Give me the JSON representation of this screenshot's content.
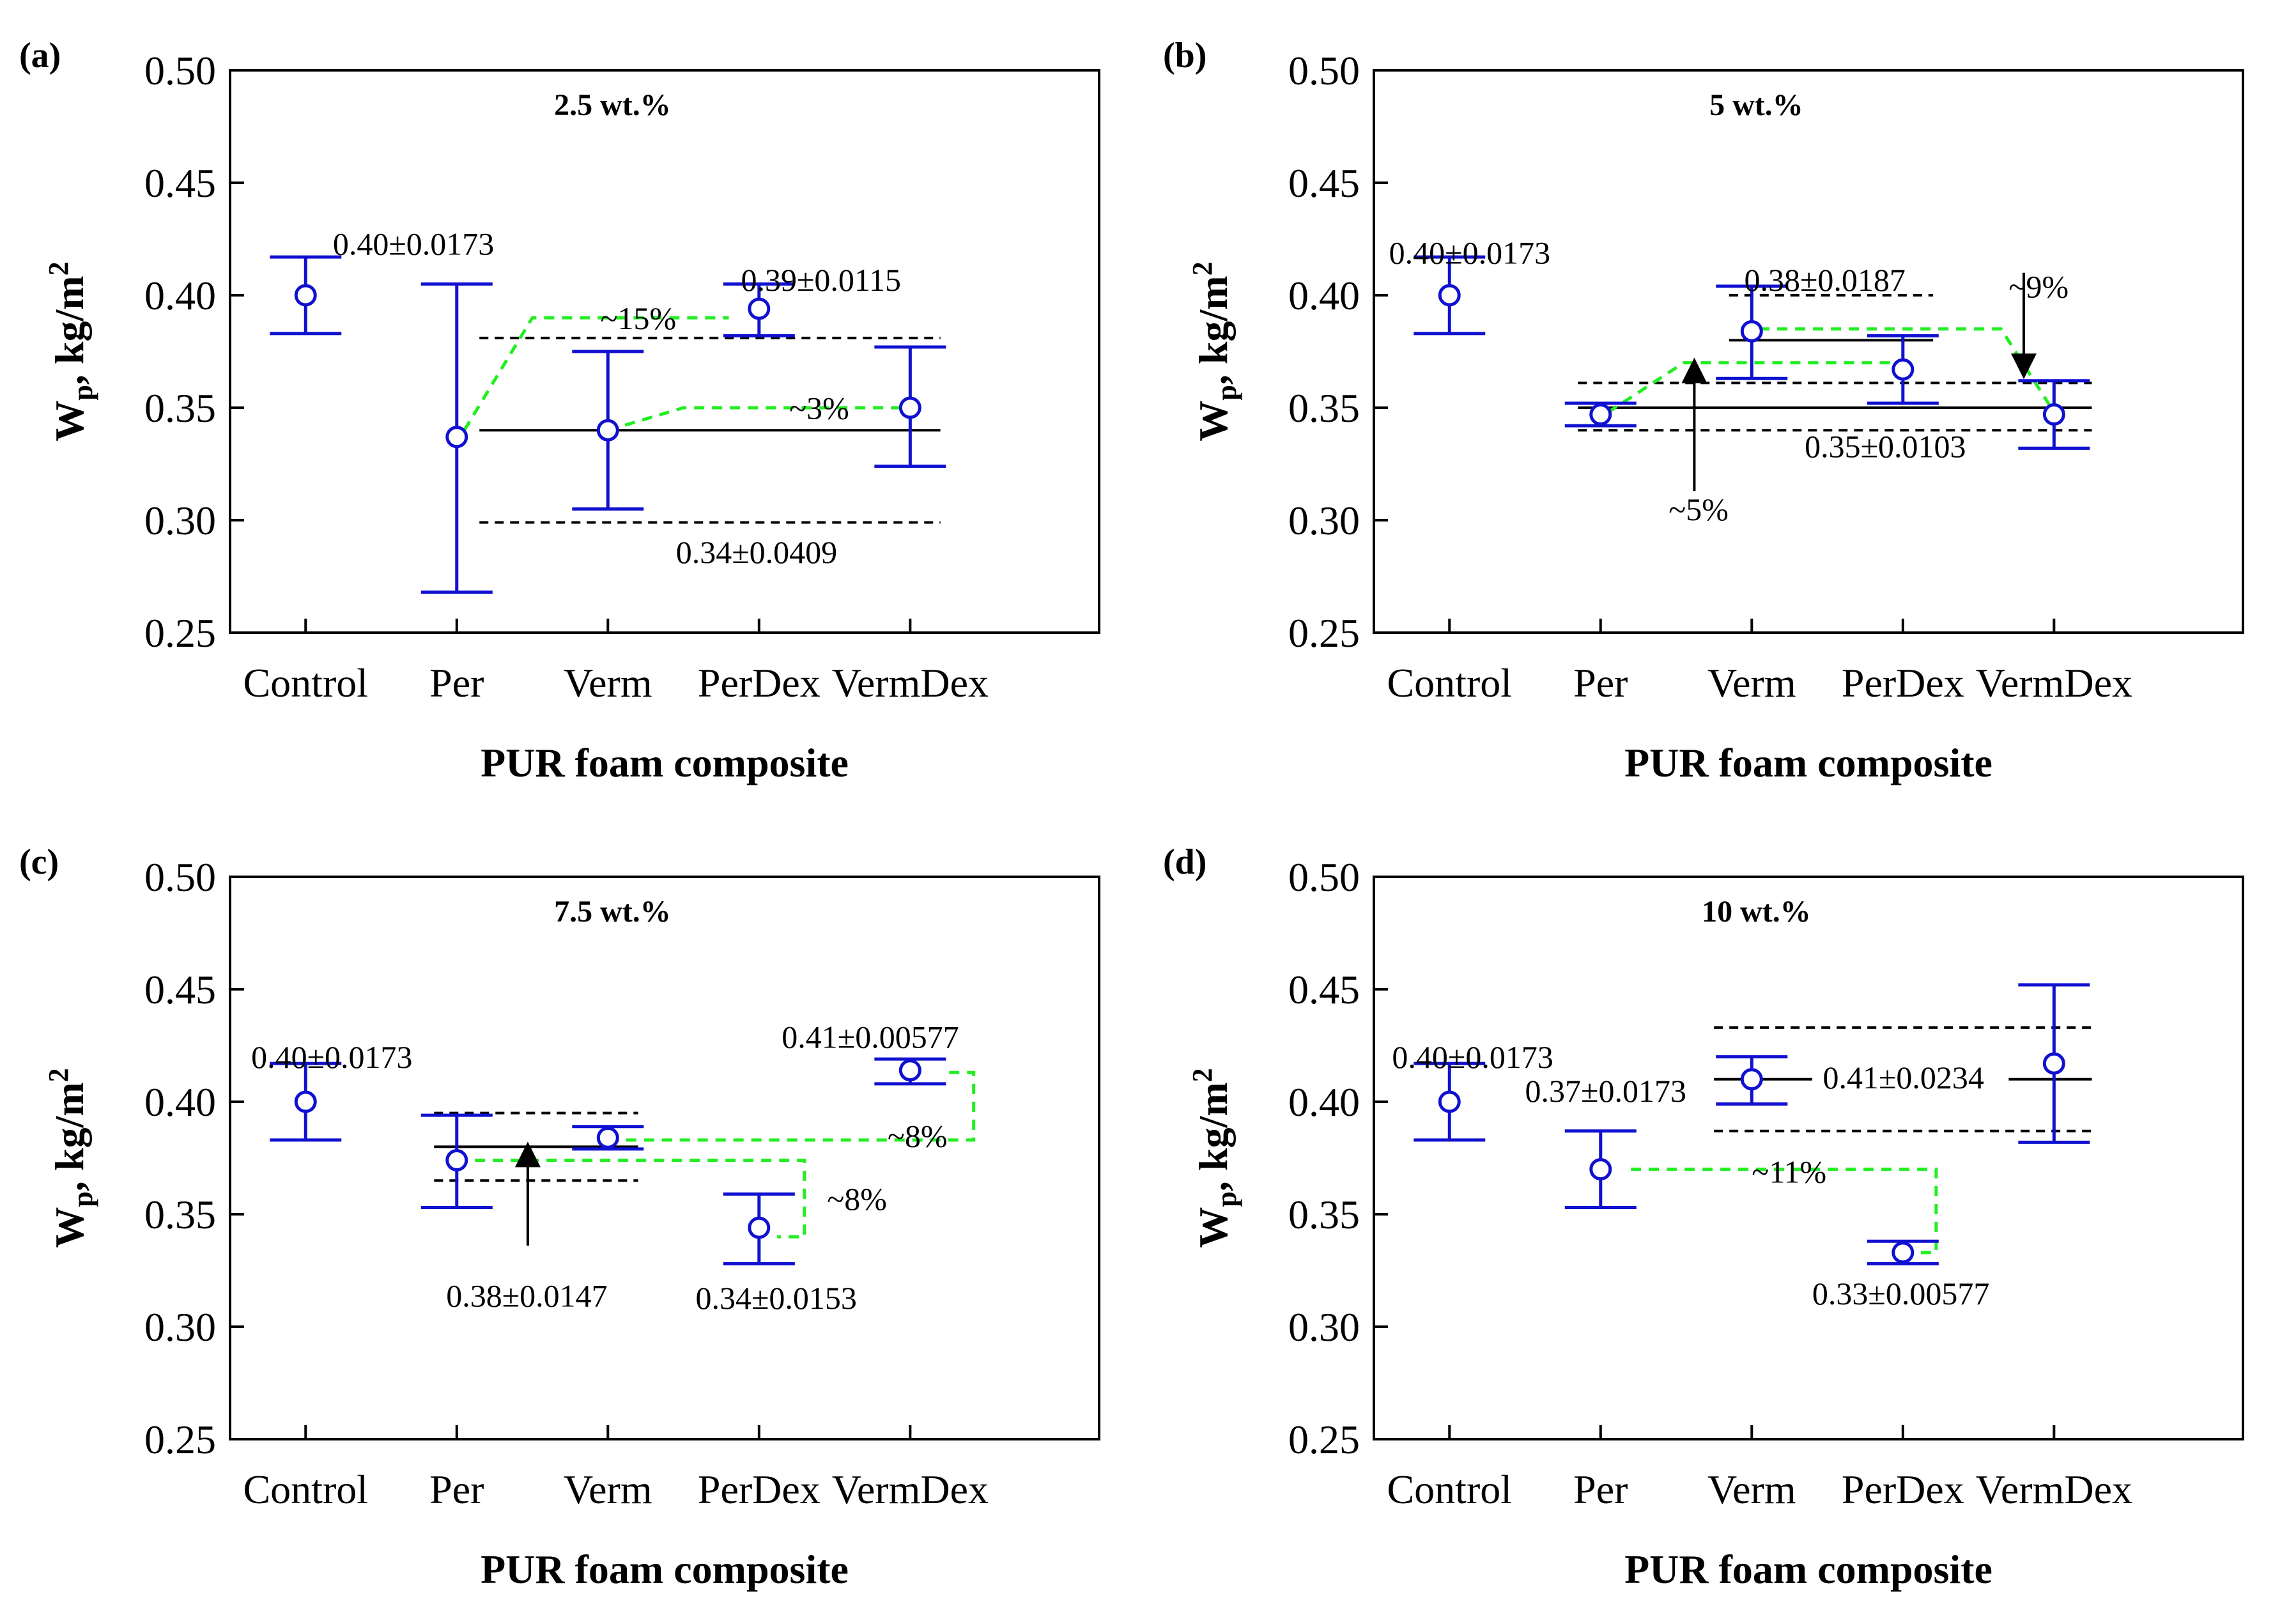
{
  "chart_data": [
    {
      "type": "scatter",
      "panel": "(a)",
      "title": "2.5 wt.%",
      "xlabel": "PUR foam composite",
      "ylabel": {
        "main": "W",
        "sub": "p",
        "unit": ", kg/m",
        "sup": "2"
      },
      "categories": [
        "Control",
        "Per",
        "Verm",
        "PerDex",
        "VermDex"
      ],
      "values": [
        0.4,
        0.337,
        0.34,
        0.394,
        0.35
      ],
      "err_low": [
        0.383,
        0.268,
        0.305,
        0.382,
        0.324
      ],
      "err_high": [
        0.417,
        0.405,
        0.375,
        0.405,
        0.377
      ],
      "ylim": [
        0.25,
        0.5
      ],
      "yticks": [
        0.25,
        0.3,
        0.35,
        0.4,
        0.45,
        0.5
      ],
      "ytick_labels": [
        "0.25",
        "0.30",
        "0.35",
        "0.40",
        "0.45",
        "0.50"
      ],
      "mean_line": {
        "y": 0.34,
        "x_from": 1.15,
        "x_to": 4.2
      },
      "band_lines": [
        {
          "y": 0.381,
          "x_from": 1.15,
          "x_to": 4.2
        },
        {
          "y": 0.299,
          "x_from": 1.15,
          "x_to": 4.2
        }
      ],
      "green_paths": [
        [
          [
            1.05,
            0.34
          ],
          [
            1.5,
            0.39
          ],
          [
            2.8,
            0.39
          ]
        ],
        [
          [
            2.0,
            0.34
          ],
          [
            2.5,
            0.35
          ],
          [
            4.0,
            0.35
          ]
        ]
      ],
      "arrows": [],
      "annotations": [
        {
          "text": "0.40±0.0173",
          "x": 0.18,
          "y": 0.418
        },
        {
          "text": "0.39±0.0115",
          "x": 2.88,
          "y": 0.402
        },
        {
          "text": "~15%",
          "x": 1.95,
          "y": 0.385
        },
        {
          "text": "~3%",
          "x": 3.2,
          "y": 0.345
        },
        {
          "text": "0.34±0.0409",
          "x": 2.45,
          "y": 0.281
        }
      ]
    },
    {
      "type": "scatter",
      "panel": "(b)",
      "title": "5 wt.%",
      "xlabel": "PUR foam composite",
      "ylabel": {
        "main": "W",
        "sub": "p",
        "unit": ", kg/m",
        "sup": "2"
      },
      "categories": [
        "Control",
        "Per",
        "Verm",
        "PerDex",
        "VermDex"
      ],
      "values": [
        0.4,
        0.347,
        0.384,
        0.367,
        0.347
      ],
      "err_low": [
        0.383,
        0.342,
        0.363,
        0.352,
        0.332
      ],
      "err_high": [
        0.417,
        0.352,
        0.404,
        0.382,
        0.362
      ],
      "ylim": [
        0.25,
        0.5
      ],
      "yticks": [
        0.25,
        0.3,
        0.35,
        0.4,
        0.45,
        0.5
      ],
      "ytick_labels": [
        "0.25",
        "0.30",
        "0.35",
        "0.40",
        "0.45",
        "0.50"
      ],
      "mean_line": {
        "y": 0.35,
        "x_from": 0.85,
        "x_to": 4.25
      },
      "band_lines": [
        {
          "y": 0.361,
          "x_from": 0.85,
          "x_to": 4.25
        },
        {
          "y": 0.34,
          "x_from": 0.85,
          "x_to": 4.25
        },
        {
          "y": 0.4,
          "x_from": 1.85,
          "x_to": 3.2
        }
      ],
      "segment_lines": [
        {
          "y": 0.38,
          "x_from": 1.85,
          "x_to": 3.2
        }
      ],
      "green_paths": [
        [
          [
            1.05,
            0.348
          ],
          [
            1.55,
            0.37
          ],
          [
            3.0,
            0.37
          ]
        ],
        [
          [
            2.05,
            0.385
          ],
          [
            3.65,
            0.385
          ],
          [
            4.0,
            0.348
          ]
        ]
      ],
      "arrows": [
        {
          "x": 1.62,
          "y_from": 0.313,
          "y_to": 0.37
        },
        {
          "x": 3.8,
          "y_from": 0.41,
          "y_to": 0.365
        }
      ],
      "annotations": [
        {
          "text": "0.40±0.0173",
          "x": -0.4,
          "y": 0.414
        },
        {
          "text": "0.38±0.0187",
          "x": 1.95,
          "y": 0.402
        },
        {
          "text": "~9%",
          "x": 3.7,
          "y": 0.399
        },
        {
          "text": "0.35±0.0103",
          "x": 2.35,
          "y": 0.328
        },
        {
          "text": "~5%",
          "x": 1.45,
          "y": 0.3
        }
      ]
    },
    {
      "type": "scatter",
      "panel": "(c)",
      "title": "7.5 wt.%",
      "xlabel": "PUR foam composite",
      "ylabel": {
        "main": "W",
        "sub": "p",
        "unit": ", kg/m",
        "sup": "2"
      },
      "categories": [
        "Control",
        "Per",
        "Verm",
        "PerDex",
        "VermDex"
      ],
      "values": [
        0.4,
        0.374,
        0.384,
        0.344,
        0.414
      ],
      "err_low": [
        0.383,
        0.353,
        0.379,
        0.328,
        0.408
      ],
      "err_high": [
        0.417,
        0.394,
        0.389,
        0.359,
        0.419
      ],
      "ylim": [
        0.25,
        0.5
      ],
      "yticks": [
        0.25,
        0.3,
        0.35,
        0.4,
        0.45,
        0.5
      ],
      "ytick_labels": [
        "0.25",
        "0.30",
        "0.35",
        "0.40",
        "0.45",
        "0.50"
      ],
      "mean_line": {
        "y": 0.38,
        "x_from": 0.85,
        "x_to": 2.2
      },
      "band_lines": [
        {
          "y": 0.395,
          "x_from": 0.85,
          "x_to": 2.2
        },
        {
          "y": 0.365,
          "x_from": 0.85,
          "x_to": 2.2
        }
      ],
      "green_paths": [
        [
          [
            1.12,
            0.374
          ],
          [
            3.3,
            0.374
          ],
          [
            3.3,
            0.34
          ],
          [
            3.12,
            0.34
          ]
        ],
        [
          [
            2.12,
            0.383
          ],
          [
            4.42,
            0.383
          ],
          [
            4.42,
            0.413
          ],
          [
            4.22,
            0.413
          ]
        ]
      ],
      "arrows": [
        {
          "x": 1.47,
          "y_from": 0.336,
          "y_to": 0.38
        }
      ],
      "annotations": [
        {
          "text": "0.40±0.0173",
          "x": -0.36,
          "y": 0.415
        },
        {
          "text": "0.41±0.00577",
          "x": 3.15,
          "y": 0.424
        },
        {
          "text": "~8%",
          "x": 3.85,
          "y": 0.38
        },
        {
          "text": "~8%",
          "x": 3.45,
          "y": 0.352
        },
        {
          "text": "0.38±0.0147",
          "x": 0.93,
          "y": 0.309
        },
        {
          "text": "0.34±0.0153",
          "x": 2.58,
          "y": 0.308
        }
      ]
    },
    {
      "type": "scatter",
      "panel": "(d)",
      "title": "10 wt.%",
      "xlabel": "PUR foam composite",
      "ylabel": {
        "main": "W",
        "sub": "p",
        "unit": ", kg/m",
        "sup": "2"
      },
      "categories": [
        "Control",
        "Per",
        "Verm",
        "PerDex",
        "VermDex"
      ],
      "values": [
        0.4,
        0.37,
        0.41,
        0.333,
        0.417
      ],
      "err_low": [
        0.383,
        0.353,
        0.399,
        0.328,
        0.382
      ],
      "err_high": [
        0.417,
        0.387,
        0.42,
        0.338,
        0.452
      ],
      "ylim": [
        0.25,
        0.5
      ],
      "yticks": [
        0.25,
        0.3,
        0.35,
        0.4,
        0.45,
        0.5
      ],
      "ytick_labels": [
        "0.25",
        "0.30",
        "0.35",
        "0.40",
        "0.45",
        "0.50"
      ],
      "mean_line": null,
      "band_lines": [
        {
          "y": 0.433,
          "x_from": 1.75,
          "x_to": 4.25
        },
        {
          "y": 0.387,
          "x_from": 1.75,
          "x_to": 4.25
        }
      ],
      "segment_lines": [
        {
          "y": 0.41,
          "x_from": 1.75,
          "x_to": 2.4
        },
        {
          "y": 0.41,
          "x_from": 3.7,
          "x_to": 4.25
        }
      ],
      "green_paths": [
        [
          [
            1.2,
            0.37
          ],
          [
            3.22,
            0.37
          ],
          [
            3.22,
            0.333
          ],
          [
            3.1,
            0.333
          ]
        ]
      ],
      "arrows": [],
      "annotations": [
        {
          "text": "0.40±0.0173",
          "x": -0.38,
          "y": 0.415
        },
        {
          "text": "0.37±0.0173",
          "x": 0.5,
          "y": 0.4
        },
        {
          "text": "0.41±0.0234",
          "x": 2.47,
          "y": 0.406
        },
        {
          "text": "~11%",
          "x": 2.0,
          "y": 0.364
        },
        {
          "text": "0.33±0.00577",
          "x": 2.4,
          "y": 0.31
        }
      ]
    }
  ]
}
